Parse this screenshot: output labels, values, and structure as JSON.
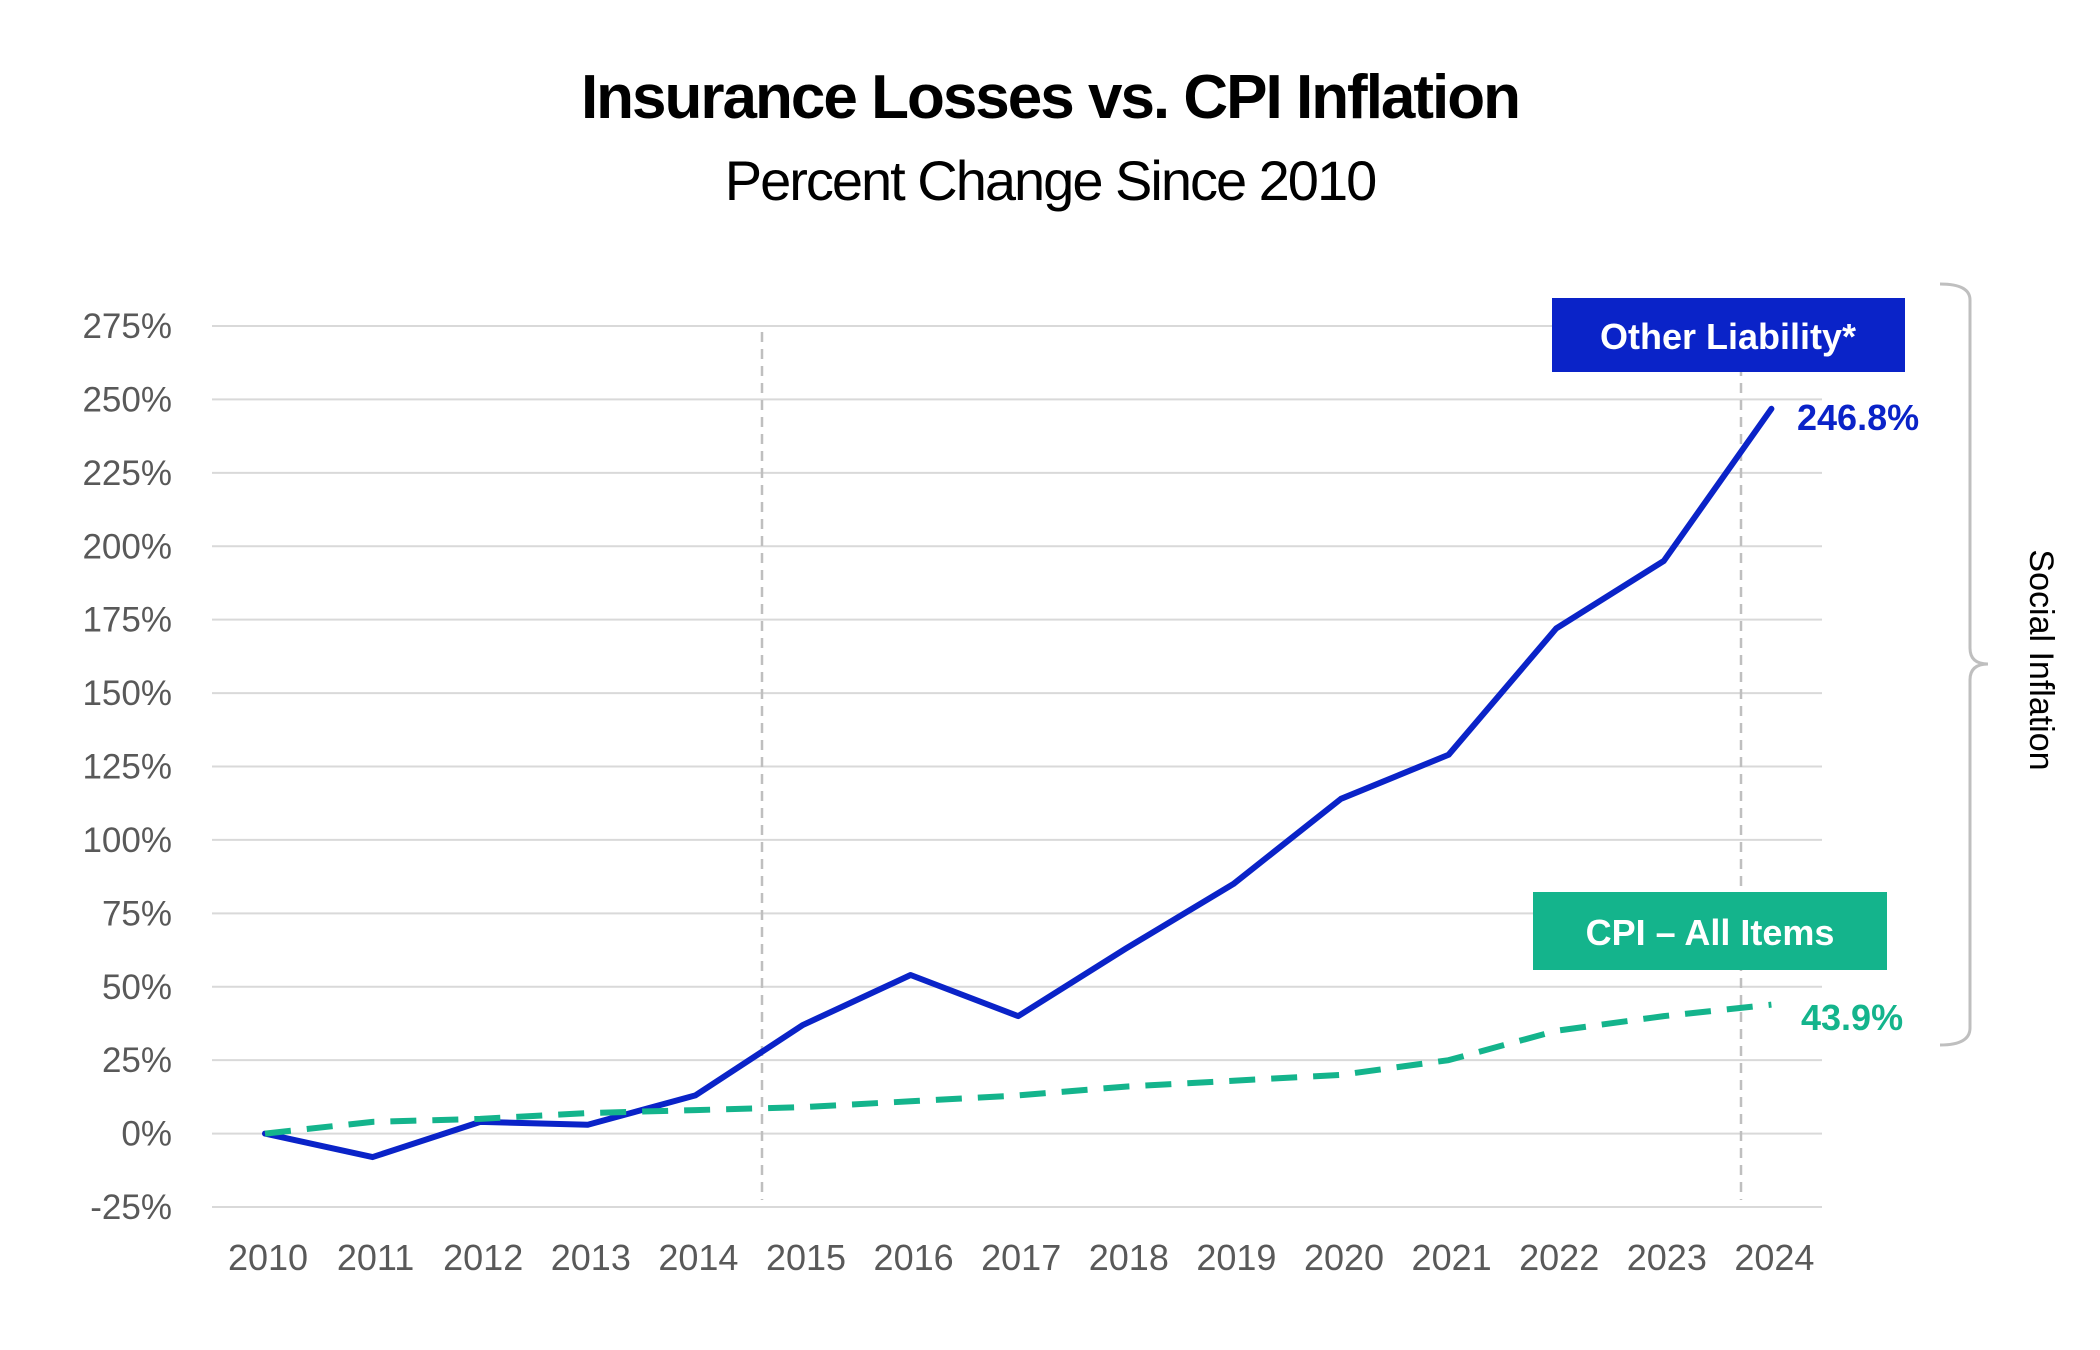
{
  "chart_data": {
    "type": "line",
    "title": "Insurance Losses vs. CPI Inflation",
    "subtitle": "Percent Change Since 2010",
    "x": [
      "2010",
      "2011",
      "2012",
      "2013",
      "2014",
      "2015",
      "2016",
      "2017",
      "2018",
      "2019",
      "2020",
      "2021",
      "2022",
      "2023",
      "2024"
    ],
    "y_ticks": [
      "275%",
      "250%",
      "225%",
      "200%",
      "175%",
      "150%",
      "125%",
      "100%",
      "75%",
      "50%",
      "25%",
      "0%",
      "-25%"
    ],
    "ylim": [
      -25,
      275
    ],
    "grid": true,
    "series": [
      {
        "name": "Other Liability*",
        "values": [
          0,
          -8,
          4,
          3,
          13,
          37,
          54,
          40,
          63,
          85,
          114,
          129,
          172,
          195,
          246.8
        ],
        "color": "#0a23c8",
        "dash": "solid",
        "end_label": "246.8%"
      },
      {
        "name": "CPI – All Items",
        "values": [
          0,
          4,
          5,
          7,
          8,
          9,
          11,
          13,
          16,
          18,
          20,
          25,
          35,
          40,
          43.9
        ],
        "color": "#14b48c",
        "dash": "dashed",
        "end_label": "43.9%"
      }
    ],
    "annotations": {
      "bracket_label": "Social Inflation"
    }
  }
}
